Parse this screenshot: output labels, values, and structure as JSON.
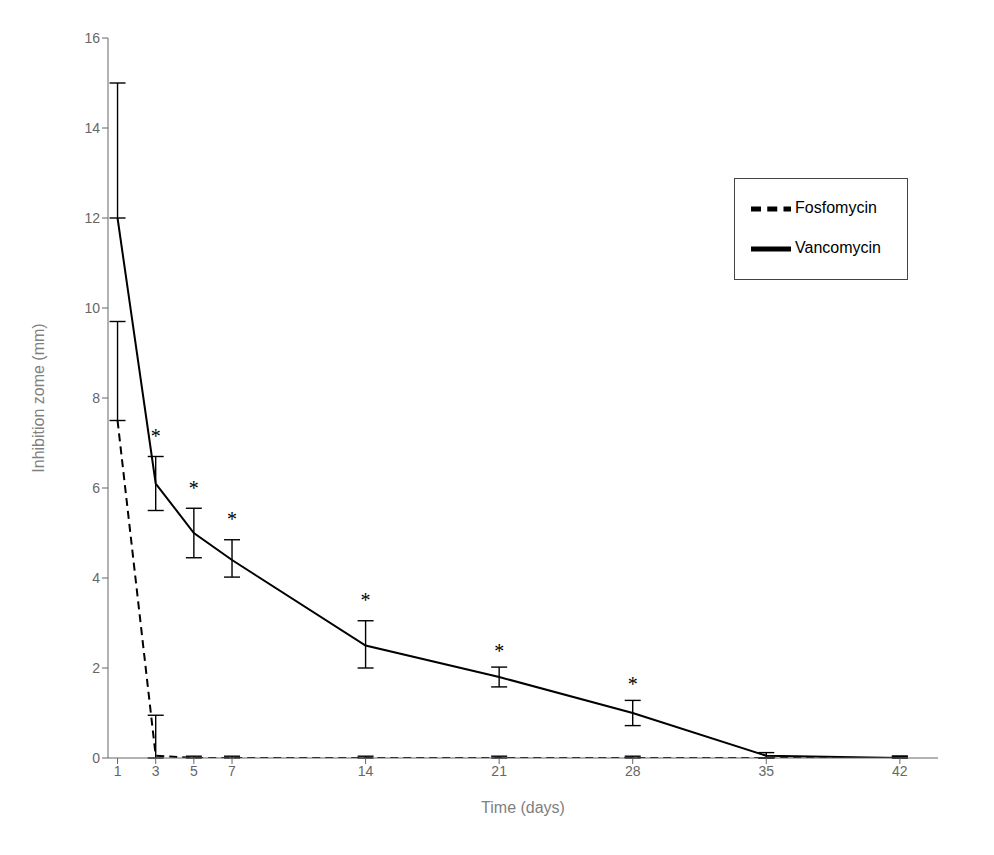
{
  "chart_data": {
    "type": "line",
    "x_label": "Time (days)",
    "y_label": "Inhibition zome (mm)",
    "x": [
      1,
      3,
      5,
      7,
      14,
      21,
      28,
      35,
      42
    ],
    "series": [
      {
        "name": "Vancomycin",
        "color": "#000000",
        "line_style": "solid",
        "values": [
          12.0,
          6.1,
          5.0,
          4.4,
          2.5,
          1.8,
          1.0,
          0.05,
          0.0
        ],
        "yerr_upper": [
          3.0,
          0.6,
          0.55,
          0.45,
          0.55,
          0.22,
          0.28,
          0.07,
          0.04
        ],
        "yerr_lower": [
          0.0,
          0.6,
          0.55,
          0.38,
          0.5,
          0.22,
          0.28,
          0.05,
          0.0
        ]
      },
      {
        "name": "Fosfomycin",
        "color": "#000000",
        "line_style": "dashed",
        "values": [
          7.5,
          0.05,
          0.0,
          0.0,
          0.0,
          0.0,
          0.0,
          0.0,
          0.0
        ],
        "yerr_upper": [
          2.2,
          0.9,
          0.04,
          0.04,
          0.04,
          0.04,
          0.04,
          0.0,
          0.04
        ],
        "yerr_lower": [
          0.0,
          0.05,
          0.0,
          0.0,
          0.0,
          0.0,
          0.0,
          0.0,
          0.0
        ]
      }
    ],
    "annotations": [
      {
        "text": "*",
        "x": 3,
        "y": 7.0,
        "color": "#000000"
      },
      {
        "text": "*",
        "x": 5,
        "y": 5.85,
        "color": "#000000"
      },
      {
        "text": "*",
        "x": 7,
        "y": 5.15,
        "color": "#000000"
      },
      {
        "text": "*",
        "x": 14,
        "y": 3.35,
        "color": "#000000"
      },
      {
        "text": "*",
        "x": 21,
        "y": 2.22,
        "color": "#000000"
      },
      {
        "text": "*",
        "x": 28,
        "y": 1.48,
        "color": "#000000"
      }
    ],
    "xlim": [
      0.5,
      44
    ],
    "ylim": [
      0,
      16
    ],
    "xticks": [
      1,
      3,
      5,
      7,
      14,
      21,
      28,
      35,
      42
    ],
    "yticks": [
      0,
      2,
      4,
      6,
      8,
      10,
      12,
      14,
      16
    ],
    "legend": "upper right",
    "grid": false
  }
}
